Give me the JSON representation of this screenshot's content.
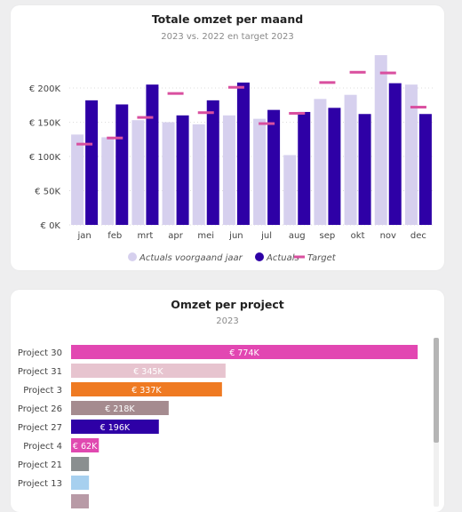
{
  "chart_data": [
    {
      "type": "bar",
      "title": "Totale omzet per maand",
      "subtitle": "2023 vs. 2022 en target 2023",
      "categories": [
        "jan",
        "feb",
        "mrt",
        "apr",
        "mei",
        "jun",
        "jul",
        "aug",
        "sep",
        "okt",
        "nov",
        "dec"
      ],
      "y_ticks": [
        "€ 0K",
        "€ 50K",
        "€ 100K",
        "€ 150K",
        "€ 200K"
      ],
      "ylim": [
        0,
        250000
      ],
      "grid": true,
      "legend_position": "bottom",
      "series": [
        {
          "name": "Actuals voorgaand jaar",
          "type": "bar",
          "color": "#d6d0ee",
          "values": [
            132000,
            128000,
            153000,
            150000,
            147000,
            160000,
            155000,
            102000,
            184000,
            190000,
            248000,
            205000
          ]
        },
        {
          "name": "Actuals",
          "type": "bar",
          "color": "#2e00a6",
          "values": [
            182000,
            176000,
            205000,
            160000,
            182000,
            208000,
            168000,
            165000,
            171000,
            162000,
            207000,
            162000
          ]
        },
        {
          "name": "Target",
          "type": "marker",
          "color": "#d94f9f",
          "values": [
            118000,
            127000,
            157000,
            192000,
            164000,
            201000,
            148000,
            163000,
            208000,
            223000,
            222000,
            172000
          ]
        }
      ]
    },
    {
      "type": "bar",
      "orientation": "horizontal",
      "title": "Omzet per project",
      "subtitle": "2023",
      "categories": [
        "Project 30",
        "Project 31",
        "Project 3",
        "Project 26",
        "Project 27",
        "Project 4",
        "Project 21",
        "Project 13"
      ],
      "values": [
        774,
        345,
        337,
        218,
        196,
        62,
        40,
        40
      ],
      "value_labels": [
        "€ 774K",
        "€ 345K",
        "€ 337K",
        "€ 218K",
        "€ 196K",
        "€ 62K",
        "",
        ""
      ],
      "colors": [
        "#e247b2",
        "#e7c4cf",
        "#ef7a22",
        "#a58b8f",
        "#2e00a6",
        "#e049b0",
        "#8a8f90",
        "#a7d0ef"
      ],
      "unit": "K€"
    }
  ]
}
